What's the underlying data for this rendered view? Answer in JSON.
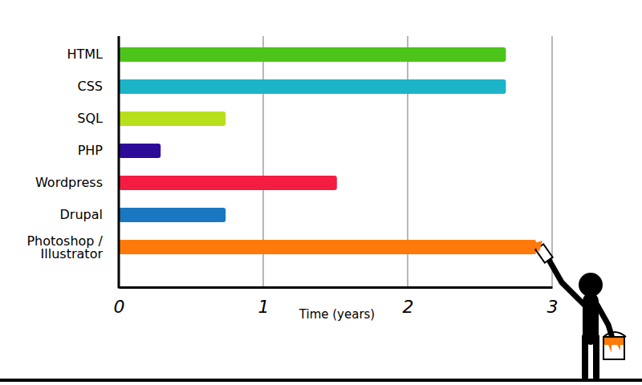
{
  "chart_data": {
    "type": "bar",
    "orientation": "horizontal",
    "categories": [
      "HTML",
      "CSS",
      "SQL",
      "PHP",
      "Wordpress",
      "Drupal",
      "Photoshop / Illustrator"
    ],
    "values": [
      2.68,
      2.68,
      0.74,
      0.29,
      1.51,
      0.74,
      2.89
    ],
    "colors": [
      "#4cc41a",
      "#1cb4c8",
      "#b8e01a",
      "#2e0a99",
      "#f51c42",
      "#1a78c2",
      "#ff7a0a"
    ],
    "x_label": "Time (years)",
    "xlim": [
      0,
      3
    ],
    "xticks": [
      0,
      1,
      2,
      3
    ],
    "grid": true
  }
}
